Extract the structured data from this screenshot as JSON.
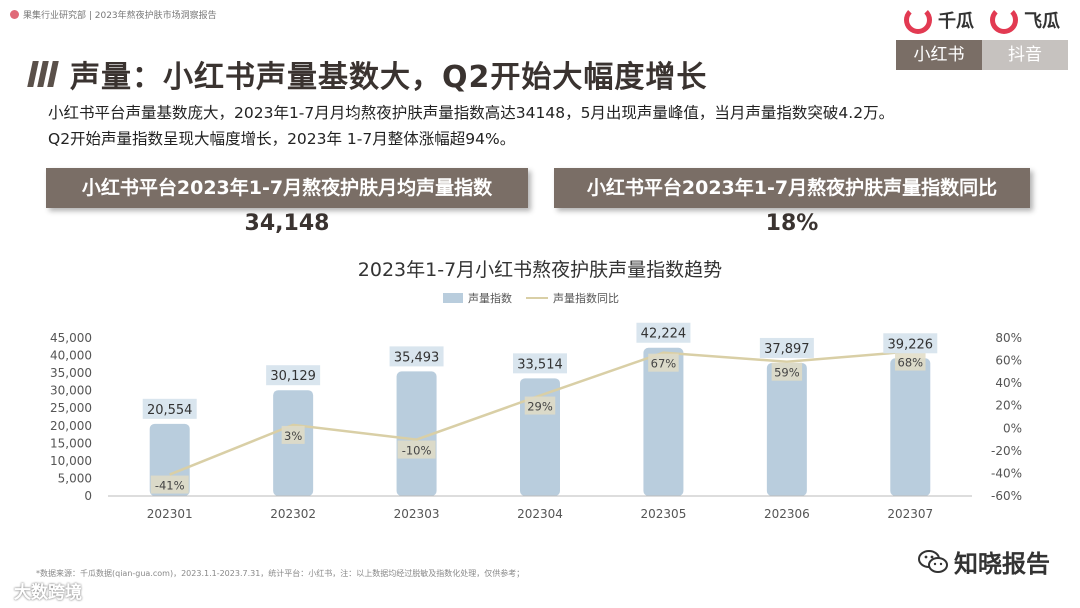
{
  "header": {
    "source_line": "果集行业研究部 | 2023年熬夜护肤市场洞察报告",
    "brand1": "千瓜",
    "brand2": "飞瓜",
    "tabs": [
      {
        "label": "小红书",
        "active": true
      },
      {
        "label": "抖音",
        "active": false
      }
    ]
  },
  "title": "声量：小红书声量基数大，Q2开始大幅度增长",
  "description": [
    "小红书平台声量基数庞大，2023年1-7月月均熬夜护肤声量指数高达34148，5月出现声量峰值，当月声量指数突破4.2万。",
    "Q2开始声量指数呈现大幅度增长，2023年 1-7月整体涨幅超94%。"
  ],
  "kpis": [
    {
      "label": "小红书平台2023年1-7月熬夜护肤月均声量指数",
      "value": "34,148"
    },
    {
      "label": "小红书平台2023年1-7月熬夜护肤声量指数同比",
      "value": "18%"
    }
  ],
  "footnote": "*数据来源：千瓜数据(qian-gua.com)，2023.1.1-2023.7.31，统计平台：小红书，注：以上数据均经过脱敏及指数化处理，仅供参考；",
  "watermarks": {
    "left": "大数跨境",
    "right": "知晓报告"
  },
  "colors": {
    "bar": "#b9cddd",
    "line": "#d9cfa6",
    "label_bg_bar": "#d9e5ee",
    "label_bg_line": "#e0dcc5",
    "accent": "#7a6e66"
  },
  "chart_data": {
    "type": "bar",
    "title": "2023年1-7月小红书熬夜护肤声量指数趋势",
    "categories": [
      "202301",
      "202302",
      "202303",
      "202304",
      "202305",
      "202306",
      "202307"
    ],
    "series": [
      {
        "name": "声量指数",
        "type": "bar",
        "axis": "left",
        "values": [
          20554,
          30129,
          35493,
          33514,
          42224,
          37897,
          39226
        ],
        "labels": [
          "20,554",
          "30,129",
          "35,493",
          "33,514",
          "42,224",
          "37,897",
          "39,226"
        ]
      },
      {
        "name": "声量指数同比",
        "type": "line",
        "axis": "right",
        "values": [
          -41,
          3,
          -10,
          29,
          67,
          59,
          68
        ],
        "labels": [
          "-41%",
          "3%",
          "-10%",
          "29%",
          "67%",
          "59%",
          "68%"
        ]
      }
    ],
    "y_left": {
      "min": 0,
      "max": 45000,
      "ticks": [
        "0",
        "5,000",
        "10,000",
        "15,000",
        "20,000",
        "25,000",
        "30,000",
        "35,000",
        "40,000",
        "45,000"
      ]
    },
    "y_right": {
      "min": -60,
      "max": 80,
      "ticks": [
        "-60%",
        "-40%",
        "-20%",
        "0%",
        "20%",
        "40%",
        "60%",
        "80%"
      ]
    },
    "legend": "top",
    "grid": false
  }
}
